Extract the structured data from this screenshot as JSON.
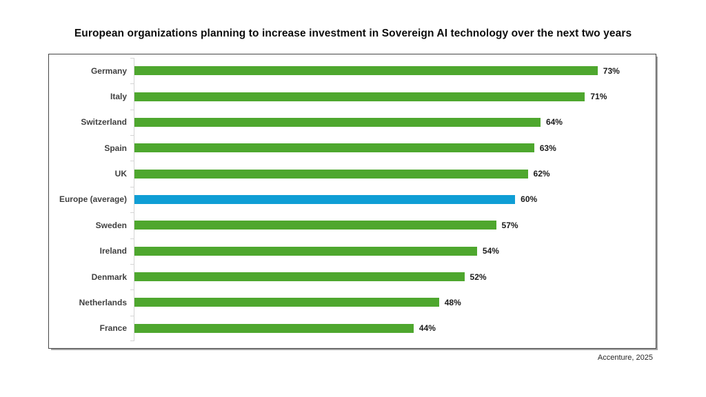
{
  "title": "European organizations planning to increase investment in Sovereign AI technology over the next two years",
  "source": "Accenture, 2025",
  "colors": {
    "bar_default": "#4EA72E",
    "bar_highlight": "#0F9ED5",
    "axis_line": "#d4d4d4",
    "title_text": "#0d0d0d",
    "category_text": "#404040",
    "value_text": "#1a1a1a",
    "box_border": "#454545",
    "box_shadow": "#a3a3a3"
  },
  "chart_data": {
    "type": "bar",
    "orientation": "horizontal",
    "title": "European organizations planning to increase investment in Sovereign AI technology over the next two years",
    "xlabel": "",
    "ylabel": "",
    "xlim": [
      0,
      81.5
    ],
    "grid": false,
    "legend": false,
    "categories": [
      "Germany",
      "Italy",
      "Switzerland",
      "Spain",
      "UK",
      "Europe (average)",
      "Sweden",
      "Ireland",
      "Denmark",
      "Netherlands",
      "France"
    ],
    "values": [
      73,
      71,
      64,
      63,
      62,
      60,
      57,
      54,
      52,
      48,
      44
    ],
    "value_labels": [
      "73%",
      "71%",
      "64%",
      "63%",
      "62%",
      "60%",
      "57%",
      "54%",
      "52%",
      "48%",
      "44%"
    ],
    "highlight_category": "Europe (average)",
    "unit": "%"
  }
}
